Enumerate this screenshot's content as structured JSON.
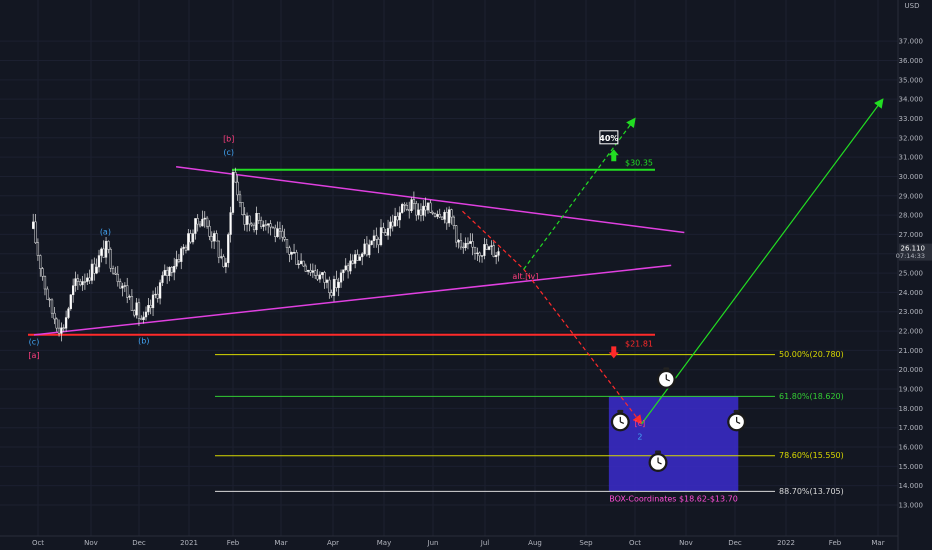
{
  "chart_data": {
    "type": "candlestick",
    "currency": "USD",
    "yaxis": {
      "ticks": [
        "13.000",
        "14.000",
        "15.000",
        "16.000",
        "17.000",
        "18.000",
        "19.000",
        "20.000",
        "21.000",
        "22.000",
        "23.000",
        "24.000",
        "25.000",
        "26.000",
        "27.000",
        "28.000",
        "29.000",
        "30.000",
        "31.000",
        "32.000",
        "33.000",
        "34.000",
        "35.000",
        "36.000",
        "37.000"
      ],
      "range": [
        12.0,
        37.2
      ]
    },
    "xaxis": {
      "ticks": [
        "Oct",
        "Nov",
        "Dec",
        "2021",
        "Feb",
        "Mar",
        "Apr",
        "May",
        "Jun",
        "Jul",
        "Aug",
        "Sep",
        "Oct",
        "Nov",
        "Dec",
        "2022",
        "Feb",
        "Mar"
      ]
    },
    "last_price": {
      "value": "26.110",
      "countdown": "07:14:33"
    },
    "price_path": [
      [
        "2020-09-25",
        27.3
      ],
      [
        "2020-10-01",
        26.0
      ],
      [
        "2020-10-08",
        23.2
      ],
      [
        "2020-10-15",
        22.0
      ],
      [
        "2020-10-22",
        24.3
      ],
      [
        "2020-11-01",
        25.1
      ],
      [
        "2020-11-10",
        26.3
      ],
      [
        "2020-11-20",
        24.5
      ],
      [
        "2020-12-01",
        22.8
      ],
      [
        "2020-12-04",
        22.4
      ],
      [
        "2020-12-15",
        24.6
      ],
      [
        "2020-12-28",
        26.2
      ],
      [
        "2021-01-10",
        28.0
      ],
      [
        "2021-01-20",
        26.5
      ],
      [
        "2021-01-27",
        25.2
      ],
      [
        "2021-02-01",
        30.2
      ],
      [
        "2021-02-08",
        27.6
      ],
      [
        "2021-02-20",
        27.8
      ],
      [
        "2021-03-05",
        26.2
      ],
      [
        "2021-03-15",
        25.5
      ],
      [
        "2021-03-25",
        24.8
      ],
      [
        "2021-04-01",
        24.2
      ],
      [
        "2021-04-12",
        25.6
      ],
      [
        "2021-04-25",
        26.5
      ],
      [
        "2021-05-05",
        27.5
      ],
      [
        "2021-05-15",
        28.5
      ],
      [
        "2021-05-25",
        28.2
      ],
      [
        "2021-06-05",
        28.3
      ],
      [
        "2021-06-12",
        27.8
      ],
      [
        "2021-06-17",
        26.2
      ],
      [
        "2021-06-28",
        26.3
      ],
      [
        "2021-07-10",
        26.1
      ]
    ],
    "levels": [
      {
        "name": "resistance",
        "label": "$30.35",
        "value": 30.35,
        "color": "#22dd22"
      },
      {
        "name": "support",
        "label": "$21.81",
        "value": 21.81,
        "color": "#ff2a2a"
      }
    ],
    "fib_levels": [
      {
        "label": "50.00%(20.780)",
        "value": 20.78,
        "color": "#d8d800"
      },
      {
        "label": "61.80%(18.620)",
        "value": 18.62,
        "color": "#33cc33"
      },
      {
        "label": "78.60%(15.550)",
        "value": 15.55,
        "color": "#d8d800"
      },
      {
        "label": "88.70%(13.705)",
        "value": 13.705,
        "color": "#d9d9d9"
      }
    ],
    "triangle": {
      "color": "#e040e0",
      "upper": [
        [
          "2020-12-24",
          30.5
        ],
        [
          "2021-10-31",
          27.1
        ]
      ],
      "lower": [
        [
          "2020-09-26",
          21.8
        ],
        [
          "2021-10-23",
          25.4
        ]
      ]
    },
    "box": {
      "label": "BOX-Coordinates $18.62-$13.70",
      "x": [
        "2021-09-15",
        "2021-12-03"
      ],
      "y": [
        18.62,
        13.7
      ],
      "color": "#3b2bcc"
    },
    "percent_badge": "40%",
    "projections": [
      {
        "name": "bear-path",
        "color": "#ff2a2a",
        "dashed": true,
        "points": [
          [
            "2021-06-18",
            28.2
          ],
          [
            "2021-07-25",
            25.2
          ],
          [
            "2021-10-05",
            17.2
          ]
        ]
      },
      {
        "name": "bull-alt-path",
        "color": "#22dd22",
        "dashed": true,
        "points": [
          [
            "2021-07-25",
            25.2
          ],
          [
            "2021-10-01",
            33.0
          ]
        ]
      },
      {
        "name": "bull-path",
        "color": "#22dd22",
        "dashed": false,
        "points": [
          [
            "2021-10-05",
            17.2
          ],
          [
            "2022-03-04",
            34.0
          ]
        ]
      }
    ],
    "arrows": [
      {
        "name": "up-arrow",
        "color": "#22dd22",
        "at": [
          "2021-09-18",
          31.1
        ],
        "dir": "up"
      },
      {
        "name": "down-arrow",
        "color": "#ff2a2a",
        "at": [
          "2021-09-18",
          20.9
        ],
        "dir": "down"
      }
    ],
    "wave_labels": [
      {
        "text": "(c)",
        "at": [
          "2020-09-26",
          21.3
        ],
        "color": "#42a5f5"
      },
      {
        "text": "[a]",
        "at": [
          "2020-09-26",
          20.6
        ],
        "color": "#ff3f7f"
      },
      {
        "text": "(a)",
        "at": [
          "2020-11-10",
          27.0
        ],
        "color": "#42a5f5"
      },
      {
        "text": "(b)",
        "at": [
          "2020-12-04",
          21.35
        ],
        "color": "#42a5f5"
      },
      {
        "text": "[b]",
        "at": [
          "2021-01-29",
          31.8
        ],
        "color": "#ff3f7f"
      },
      {
        "text": "(c)",
        "at": [
          "2021-01-29",
          31.1
        ],
        "color": "#42a5f5"
      },
      {
        "text": "alt.[iv]",
        "at": [
          "2021-07-26",
          24.7
        ],
        "color": "#ff3f7f"
      },
      {
        "text": "[c]",
        "at": [
          "2021-10-04",
          17.1
        ],
        "color": "#ff3f7f"
      },
      {
        "text": "2",
        "at": [
          "2021-10-04",
          16.4
        ],
        "color": "#42a5f5"
      }
    ],
    "clock_icons": [
      [
        "2021-10-20",
        19.5
      ],
      [
        "2021-09-22",
        17.3
      ],
      [
        "2021-12-02",
        17.3
      ],
      [
        "2021-10-15",
        15.2
      ]
    ]
  }
}
